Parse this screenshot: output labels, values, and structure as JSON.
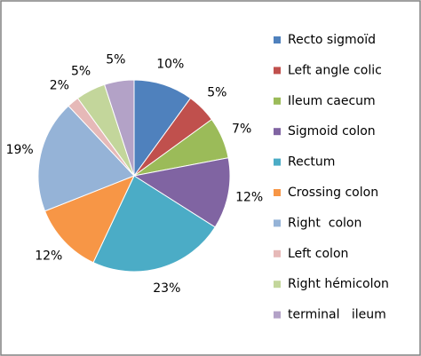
{
  "chart_data": {
    "type": "pie",
    "categories": [
      "Recto sigmoïd",
      "Left angle colic",
      "Ileum caecum",
      "Sigmoid colon",
      "Rectum",
      "Crossing colon",
      "Right  colon",
      "Left colon",
      "Right hémicolon",
      "terminal   ileum"
    ],
    "values": [
      10,
      5,
      7,
      12,
      23,
      12,
      19,
      2,
      5,
      5
    ],
    "value_labels": [
      "10%",
      "5%",
      "7%",
      "12%",
      "23%",
      "12%",
      "19%",
      "2%",
      "5%",
      "5%"
    ],
    "colors": [
      "#4f81bd",
      "#c0504d",
      "#9bbb59",
      "#8064a2",
      "#4bacc6",
      "#f79646",
      "#95b3d7",
      "#e6b9b8",
      "#c3d69b",
      "#b3a2c7"
    ],
    "legend": "right"
  }
}
